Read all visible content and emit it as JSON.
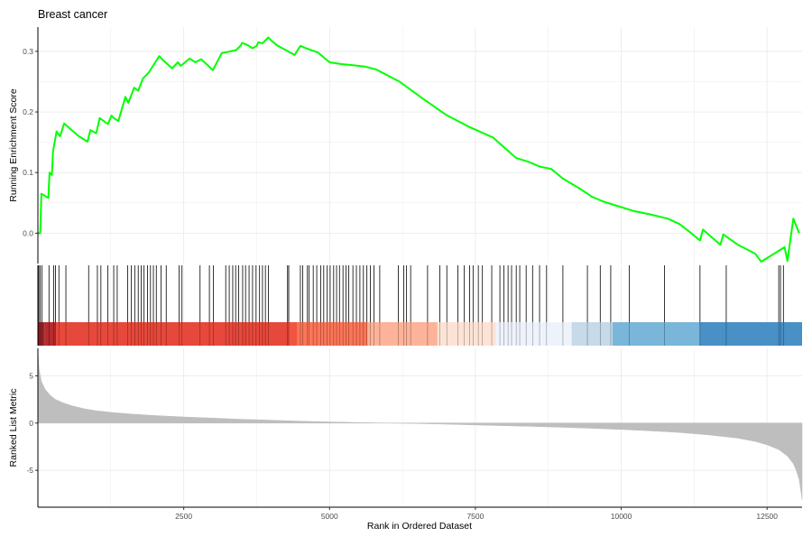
{
  "chart_data": {
    "type": "line",
    "title": "Breast cancer",
    "xlabel": "Rank in Ordered Dataset",
    "xlim": [
      0,
      13100
    ],
    "x_ticks": [
      2500,
      5000,
      7500,
      10000,
      12500
    ],
    "grid": true,
    "legend": "none",
    "colors": {
      "running_score": "#00ff00",
      "hit_line": "#000000",
      "metric_fill": "#bebebe",
      "grid": "#ebebeb",
      "axis": "#000000"
    },
    "running_score": {
      "ylabel": "Running Enrichment Score",
      "ylim": [
        -0.05,
        0.34
      ],
      "y_ticks": [
        0.0,
        0.1,
        0.2,
        0.3
      ],
      "y_tick_labels": [
        "0.0",
        "0.1",
        "0.2",
        "0.3"
      ],
      "x": [
        0,
        40,
        60,
        180,
        200,
        240,
        260,
        320,
        360,
        380,
        450,
        520,
        580,
        700,
        850,
        900,
        1000,
        1060,
        1200,
        1260,
        1300,
        1380,
        1500,
        1550,
        1650,
        1720,
        1800,
        1900,
        2000,
        2080,
        2150,
        2300,
        2400,
        2450,
        2600,
        2700,
        2800,
        3000,
        3150,
        3300,
        3400,
        3480,
        3500,
        3600,
        3680,
        3750,
        3780,
        3850,
        3950,
        4000,
        4100,
        4400,
        4500,
        4600,
        4800,
        5000,
        5200,
        5400,
        5600,
        5800,
        6200,
        6600,
        7000,
        7400,
        7800,
        8000,
        8200,
        8400,
        8600,
        8800,
        9000,
        9300,
        9500,
        9700,
        9900,
        10200,
        10500,
        10800,
        11000,
        11200,
        11350,
        11400,
        11700,
        11750,
        12000,
        12300,
        12400,
        12800,
        12850,
        12900,
        12950,
        13050
      ],
      "values": [
        0.0,
        0.0,
        0.065,
        0.058,
        0.1,
        0.096,
        0.135,
        0.168,
        0.162,
        0.16,
        0.181,
        0.175,
        0.17,
        0.16,
        0.151,
        0.17,
        0.165,
        0.19,
        0.18,
        0.194,
        0.19,
        0.185,
        0.225,
        0.215,
        0.24,
        0.235,
        0.255,
        0.265,
        0.28,
        0.292,
        0.285,
        0.272,
        0.282,
        0.276,
        0.288,
        0.282,
        0.287,
        0.269,
        0.297,
        0.3,
        0.302,
        0.31,
        0.314,
        0.31,
        0.305,
        0.309,
        0.315,
        0.313,
        0.323,
        0.318,
        0.31,
        0.294,
        0.309,
        0.305,
        0.298,
        0.282,
        0.279,
        0.277,
        0.275,
        0.27,
        0.25,
        0.222,
        0.195,
        0.175,
        0.158,
        0.141,
        0.124,
        0.118,
        0.11,
        0.106,
        0.09,
        0.073,
        0.06,
        0.052,
        0.046,
        0.037,
        0.031,
        0.024,
        0.015,
        0.0,
        -0.012,
        0.006,
        -0.019,
        -0.002,
        -0.019,
        -0.034,
        -0.047,
        -0.023,
        -0.046,
        -0.01,
        0.024,
        0.0
      ]
    },
    "hits": [
      15,
      40,
      70,
      190,
      270,
      300,
      360,
      480,
      870,
      1020,
      1080,
      1200,
      1300,
      1360,
      1540,
      1600,
      1660,
      1720,
      1770,
      1820,
      1880,
      1930,
      1980,
      2030,
      2110,
      2200,
      2420,
      2470,
      2780,
      2940,
      3010,
      3220,
      3280,
      3340,
      3390,
      3440,
      3510,
      3560,
      3620,
      3680,
      3740,
      3800,
      3850,
      3900,
      3950,
      4280,
      4300,
      4500,
      4540,
      4620,
      4650,
      4720,
      4780,
      4850,
      4900,
      4960,
      5010,
      5070,
      5120,
      5170,
      5230,
      5280,
      5330,
      5400,
      5460,
      5520,
      5580,
      5640,
      5700,
      5760,
      5860,
      6180,
      6270,
      6320,
      6390,
      6680,
      6890,
      7010,
      7200,
      7310,
      7400,
      7460,
      7550,
      7620,
      7780,
      7920,
      7990,
      8060,
      8120,
      8200,
      8260,
      8370,
      8480,
      8600,
      8720,
      9000,
      9420,
      9640,
      9820,
      10140,
      10740,
      11350,
      11800,
      12700,
      12730,
      12780
    ],
    "bands": [
      {
        "x_start": 0,
        "x_end": 120,
        "color": "#99191e"
      },
      {
        "x_start": 120,
        "x_end": 300,
        "color": "#b22025"
      },
      {
        "x_start": 300,
        "x_end": 4300,
        "color": "#e53f32"
      },
      {
        "x_start": 4300,
        "x_end": 4450,
        "color": "#f04c36"
      },
      {
        "x_start": 4450,
        "x_end": 5650,
        "color": "#fb6f4f"
      },
      {
        "x_start": 5650,
        "x_end": 6850,
        "color": "#fcaf94"
      },
      {
        "x_start": 6850,
        "x_end": 7850,
        "color": "#fde1d4"
      },
      {
        "x_start": 7850,
        "x_end": 9150,
        "color": "#edf2fb"
      },
      {
        "x_start": 9150,
        "x_end": 9850,
        "color": "#c3d8e8"
      },
      {
        "x_start": 9850,
        "x_end": 11350,
        "color": "#73b2d8"
      },
      {
        "x_start": 11350,
        "x_end": 13100,
        "color": "#3f8ac4"
      }
    ],
    "ranked_metric": {
      "ylabel": "Ranked List Metric",
      "ylim": [
        -8.9,
        7.9
      ],
      "y_ticks": [
        -5,
        0,
        5
      ],
      "y_tick_labels": [
        "-5",
        "0",
        "5"
      ],
      "x": [
        0,
        20,
        60,
        120,
        200,
        300,
        450,
        600,
        800,
        1000,
        1300,
        1600,
        2000,
        2500,
        3000,
        3500,
        4000,
        4500,
        5000,
        5500,
        6000,
        6500,
        7000,
        7500,
        8000,
        8500,
        9000,
        9500,
        10000,
        10500,
        11000,
        11500,
        12000,
        12300,
        12500,
        12700,
        12850,
        12950,
        13000,
        13050,
        13080,
        13100
      ],
      "values": [
        7.6,
        5.7,
        4.4,
        3.6,
        3.0,
        2.5,
        2.1,
        1.8,
        1.5,
        1.3,
        1.1,
        0.95,
        0.8,
        0.65,
        0.52,
        0.4,
        0.3,
        0.2,
        0.12,
        0.05,
        0.0,
        -0.05,
        -0.12,
        -0.2,
        -0.28,
        -0.36,
        -0.45,
        -0.56,
        -0.68,
        -0.82,
        -1.0,
        -1.25,
        -1.6,
        -1.95,
        -2.3,
        -2.8,
        -3.5,
        -4.3,
        -5.0,
        -6.0,
        -7.2,
        -8.1
      ]
    }
  }
}
